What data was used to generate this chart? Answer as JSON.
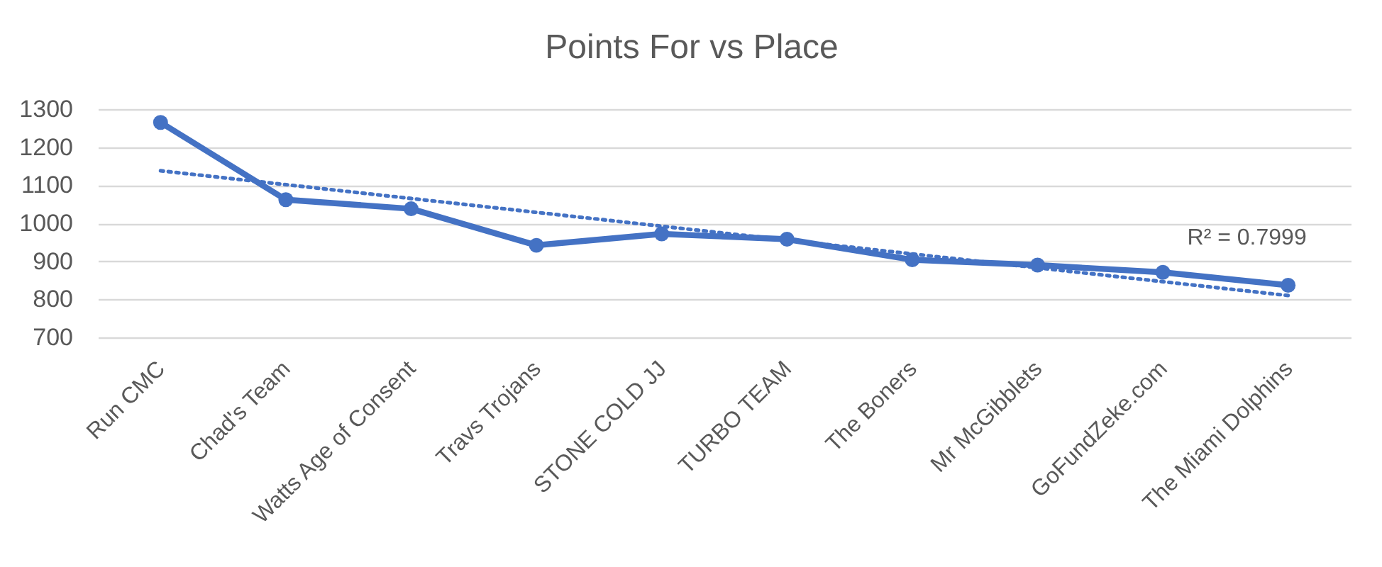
{
  "chart_data": {
    "type": "line",
    "title": "Points For vs Place",
    "categories": [
      "Run CMC",
      "Chad's Team",
      "Watts Age of Consent",
      "Travs Trojans",
      "STONE COLD JJ",
      "TURBO TEAM",
      "The Boners",
      "Mr McGibblets",
      "GoFundZeke.com",
      "The Miami Dolphins"
    ],
    "series": [
      {
        "type": "line",
        "color": "#4472c4",
        "x": [
          "Run CMC",
          "The Miami Dolphins"
        ],
        "values": [
          1138,
          810
        ],
        "line_style": "dotted",
        "marker": "none"
      },
      {
        "color": "#4472c4",
        "values": [
          1265,
          1062,
          1038,
          942,
          972,
          958,
          904,
          890,
          871,
          837
        ]
      }
    ],
    "ylim": [
      700,
      1300
    ],
    "yticks": [
      700,
      800,
      900,
      1000,
      1100,
      1200,
      1300
    ],
    "grid": "y",
    "marker": "circle",
    "line_style": "solid",
    "annotations": [
      "R² = 0.7999"
    ]
  }
}
